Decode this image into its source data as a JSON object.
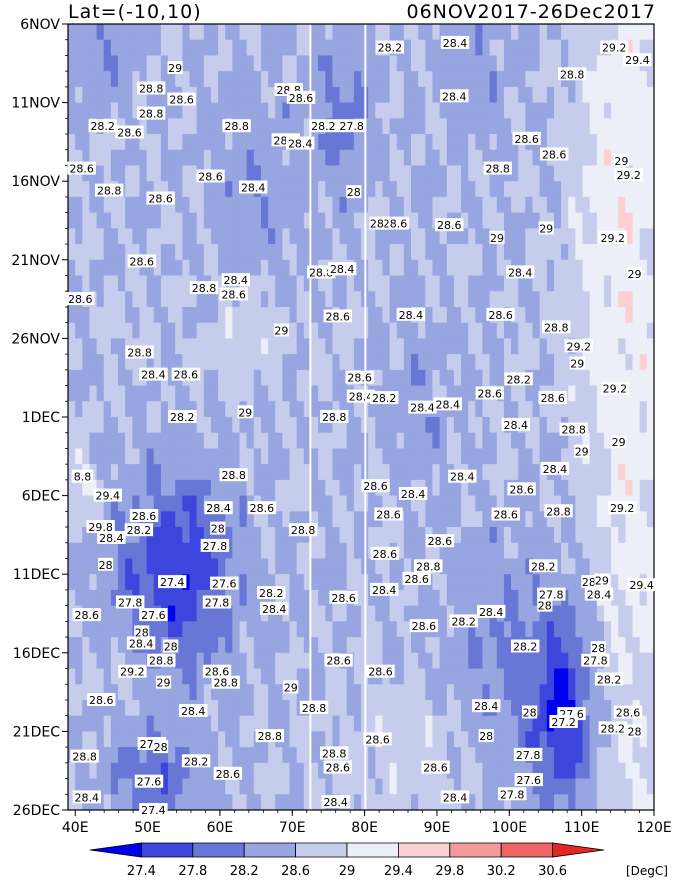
{
  "header": {
    "left": "Lat=(-10,10)",
    "right": "06NOV2017-26Dec2017"
  },
  "chart_data": {
    "type": "heatmap",
    "title": "",
    "xlabel": "",
    "ylabel": "",
    "x_ticks": [
      "40E",
      "50E",
      "60E",
      "70E",
      "80E",
      "90E",
      "100E",
      "110E",
      "120E"
    ],
    "x_tick_values": [
      40,
      50,
      60,
      70,
      80,
      90,
      100,
      110,
      120
    ],
    "xlim": [
      39,
      120
    ],
    "y_ticks": [
      "6NOV",
      "11NOV",
      "16NOV",
      "21NOV",
      "26NOV",
      "1DEC",
      "6DEC",
      "11DEC",
      "16DEC",
      "21DEC",
      "26DEC"
    ],
    "y_tick_days": [
      0,
      5,
      10,
      15,
      20,
      25,
      30,
      35,
      40,
      45,
      50
    ],
    "levels": [
      27.4,
      27.8,
      28.2,
      28.6,
      29,
      29.4,
      29.8,
      30.2,
      30.6
    ],
    "colorbar_labels": [
      "27.4",
      "27.8",
      "28.2",
      "28.6",
      "29",
      "29.4",
      "29.8",
      "30.2",
      "30.6"
    ],
    "colors": [
      "#0000ee",
      "#3c46dc",
      "#6877d6",
      "#97a5e0",
      "#c6cdec",
      "#eceef8",
      "#fbd0d0",
      "#f49a9a",
      "#ee6464",
      "#e52626"
    ],
    "units": "[DegC]",
    "contour_labels": [
      {
        "text": "28.2",
        "lon": 83.5,
        "day": 1.5
      },
      {
        "text": "28.4",
        "lon": 92.5,
        "day": 1.2
      },
      {
        "text": "29.2",
        "lon": 114.5,
        "day": 1.5
      },
      {
        "text": "29",
        "lon": 53.8,
        "day": 2.8
      },
      {
        "text": "29.4",
        "lon": 117.7,
        "day": 2.3
      },
      {
        "text": "28.8",
        "lon": 108.7,
        "day": 3.2
      },
      {
        "text": "28.8",
        "lon": 50.5,
        "day": 4.1
      },
      {
        "text": "28.8",
        "lon": 69.5,
        "day": 4.2
      },
      {
        "text": "28.4",
        "lon": 92.4,
        "day": 4.6
      },
      {
        "text": "28.6",
        "lon": 54.7,
        "day": 4.8
      },
      {
        "text": "28.6",
        "lon": 71.2,
        "day": 4.7
      },
      {
        "text": "28.8",
        "lon": 50.5,
        "day": 5.7
      },
      {
        "text": "28.2",
        "lon": 43.8,
        "day": 6.5
      },
      {
        "text": "28.2",
        "lon": 74.3,
        "day": 6.5
      },
      {
        "text": "27.8",
        "lon": 78.2,
        "day": 6.5
      },
      {
        "text": "28.6",
        "lon": 47.5,
        "day": 6.9
      },
      {
        "text": "28.8",
        "lon": 62.3,
        "day": 6.5
      },
      {
        "text": "28.6",
        "lon": 69.1,
        "day": 7.4
      },
      {
        "text": "28.4",
        "lon": 71.1,
        "day": 7.6
      },
      {
        "text": "28.6",
        "lon": 102.4,
        "day": 7.3
      },
      {
        "text": "28.6",
        "lon": 106.2,
        "day": 8.3
      },
      {
        "text": "28.6",
        "lon": 40.9,
        "day": 9.2
      },
      {
        "text": "28.8",
        "lon": 98.4,
        "day": 9.2
      },
      {
        "text": "29",
        "lon": 115.5,
        "day": 8.7
      },
      {
        "text": "29.2",
        "lon": 116.5,
        "day": 9.6
      },
      {
        "text": "28.6",
        "lon": 58.7,
        "day": 9.7
      },
      {
        "text": "28.4",
        "lon": 64.6,
        "day": 10.4
      },
      {
        "text": "28.8",
        "lon": 44.7,
        "day": 10.6
      },
      {
        "text": "28.6",
        "lon": 51.8,
        "day": 11.1
      },
      {
        "text": "28",
        "lon": 78.5,
        "day": 10.7
      },
      {
        "text": "28.6",
        "lon": 84.2,
        "day": 12.7
      },
      {
        "text": "28",
        "lon": 81.7,
        "day": 12.7
      },
      {
        "text": "28.6",
        "lon": 91.7,
        "day": 12.8
      },
      {
        "text": "29",
        "lon": 98.3,
        "day": 13.6
      },
      {
        "text": "29",
        "lon": 105.1,
        "day": 13.0
      },
      {
        "text": "29.2",
        "lon": 114.3,
        "day": 13.6
      },
      {
        "text": "28.6",
        "lon": 49.2,
        "day": 15.1
      },
      {
        "text": "28.4",
        "lon": 62.2,
        "day": 16.3
      },
      {
        "text": "28.8",
        "lon": 74.0,
        "day": 15.8
      },
      {
        "text": "28.4",
        "lon": 76.9,
        "day": 15.6
      },
      {
        "text": "28.4",
        "lon": 101.5,
        "day": 15.8
      },
      {
        "text": "29",
        "lon": 117.3,
        "day": 15.9
      },
      {
        "text": "28.8",
        "lon": 57.8,
        "day": 16.8
      },
      {
        "text": "28.6",
        "lon": 61.9,
        "day": 17.2
      },
      {
        "text": "28.6",
        "lon": 40.7,
        "day": 17.5
      },
      {
        "text": "28.6",
        "lon": 76.3,
        "day": 18.6
      },
      {
        "text": "28.4",
        "lon": 86.4,
        "day": 18.5
      },
      {
        "text": "28.6",
        "lon": 98.8,
        "day": 18.5
      },
      {
        "text": "28.8",
        "lon": 106.5,
        "day": 19.3
      },
      {
        "text": "29",
        "lon": 68.5,
        "day": 19.5
      },
      {
        "text": "29.2",
        "lon": 109.6,
        "day": 20.5
      },
      {
        "text": "28.8",
        "lon": 48.9,
        "day": 20.9
      },
      {
        "text": "29",
        "lon": 109.4,
        "day": 21.6
      },
      {
        "text": "28.4",
        "lon": 50.8,
        "day": 22.3
      },
      {
        "text": "28.6",
        "lon": 55.3,
        "day": 22.3
      },
      {
        "text": "28.6",
        "lon": 79.3,
        "day": 22.5
      },
      {
        "text": "28.2",
        "lon": 101.3,
        "day": 22.6
      },
      {
        "text": "29.2",
        "lon": 114.6,
        "day": 23.2
      },
      {
        "text": "28.6",
        "lon": 97.3,
        "day": 23.5
      },
      {
        "text": "28.6",
        "lon": 106.0,
        "day": 23.8
      },
      {
        "text": "28.4",
        "lon": 79.5,
        "day": 23.7
      },
      {
        "text": "28.2",
        "lon": 82.7,
        "day": 23.8
      },
      {
        "text": "28.4",
        "lon": 88.0,
        "day": 24.4
      },
      {
        "text": "28.4",
        "lon": 91.5,
        "day": 24.2
      },
      {
        "text": "29",
        "lon": 63.5,
        "day": 24.7
      },
      {
        "text": "28.8",
        "lon": 75.8,
        "day": 25.0
      },
      {
        "text": "28.2",
        "lon": 54.8,
        "day": 25.0
      },
      {
        "text": "28.4",
        "lon": 100.9,
        "day": 25.5
      },
      {
        "text": "28.8",
        "lon": 108.9,
        "day": 25.8
      },
      {
        "text": "29",
        "lon": 115.1,
        "day": 26.6
      },
      {
        "text": "29",
        "lon": 110.0,
        "day": 27.2
      },
      {
        "text": "28.4",
        "lon": 106.3,
        "day": 28.3
      },
      {
        "text": "28.8",
        "lon": 61.9,
        "day": 28.7
      },
      {
        "text": "28.6",
        "lon": 81.5,
        "day": 29.4
      },
      {
        "text": "28.4",
        "lon": 93.5,
        "day": 28.8
      },
      {
        "text": "28.4",
        "lon": 86.7,
        "day": 29.9
      },
      {
        "text": "8.8",
        "lon": 41.0,
        "day": 28.8
      },
      {
        "text": "29.4",
        "lon": 44.5,
        "day": 30.0
      },
      {
        "text": "28.6",
        "lon": 101.7,
        "day": 29.6
      },
      {
        "text": "28.4",
        "lon": 59.8,
        "day": 30.8
      },
      {
        "text": "28.6",
        "lon": 65.8,
        "day": 30.8
      },
      {
        "text": "28.6",
        "lon": 83.3,
        "day": 31.2
      },
      {
        "text": "28.6",
        "lon": 99.5,
        "day": 31.2
      },
      {
        "text": "28.8",
        "lon": 106.8,
        "day": 31.0
      },
      {
        "text": "29.2",
        "lon": 115.6,
        "day": 30.8
      },
      {
        "text": "28.6",
        "lon": 49.5,
        "day": 31.3
      },
      {
        "text": "29.8",
        "lon": 43.5,
        "day": 32.0
      },
      {
        "text": "28.4",
        "lon": 45.0,
        "day": 32.7
      },
      {
        "text": "28.2",
        "lon": 48.8,
        "day": 32.2
      },
      {
        "text": "28",
        "lon": 59.7,
        "day": 32.1
      },
      {
        "text": "28.8",
        "lon": 71.5,
        "day": 32.2
      },
      {
        "text": "28.6",
        "lon": 90.4,
        "day": 32.9
      },
      {
        "text": "27.8",
        "lon": 59.3,
        "day": 33.2
      },
      {
        "text": "28",
        "lon": 44.2,
        "day": 34.4
      },
      {
        "text": "28.6",
        "lon": 82.8,
        "day": 33.7
      },
      {
        "text": "28.8",
        "lon": 88.8,
        "day": 34.5
      },
      {
        "text": "28.2",
        "lon": 104.7,
        "day": 34.5
      },
      {
        "text": "27.4",
        "lon": 53.4,
        "day": 35.5
      },
      {
        "text": "27.6",
        "lon": 60.6,
        "day": 35.6
      },
      {
        "text": "28.6",
        "lon": 87.2,
        "day": 35.3
      },
      {
        "text": "28",
        "lon": 111.0,
        "day": 35.5
      },
      {
        "text": "29",
        "lon": 112.8,
        "day": 35.4
      },
      {
        "text": "29.4",
        "lon": 118.3,
        "day": 35.7
      },
      {
        "text": "28.2",
        "lon": 67.1,
        "day": 36.2
      },
      {
        "text": "28.4",
        "lon": 82.7,
        "day": 36.0
      },
      {
        "text": "28.6",
        "lon": 77.1,
        "day": 36.5
      },
      {
        "text": "27.8",
        "lon": 105.8,
        "day": 36.3
      },
      {
        "text": "28.4",
        "lon": 112.4,
        "day": 36.3
      },
      {
        "text": "27.8",
        "lon": 47.6,
        "day": 36.8
      },
      {
        "text": "27.8",
        "lon": 59.6,
        "day": 36.8
      },
      {
        "text": "28",
        "lon": 104.9,
        "day": 37.0
      },
      {
        "text": "28.4",
        "lon": 67.5,
        "day": 37.2
      },
      {
        "text": "28.6",
        "lon": 41.6,
        "day": 37.6
      },
      {
        "text": "27.6",
        "lon": 50.8,
        "day": 37.6
      },
      {
        "text": "28.4",
        "lon": 97.5,
        "day": 37.4
      },
      {
        "text": "28.2",
        "lon": 93.7,
        "day": 38.0
      },
      {
        "text": "28.6",
        "lon": 88.2,
        "day": 38.3
      },
      {
        "text": "28",
        "lon": 49.2,
        "day": 38.7
      },
      {
        "text": "28.4",
        "lon": 49.1,
        "day": 39.4
      },
      {
        "text": "28",
        "lon": 53.2,
        "day": 39.6
      },
      {
        "text": "28.2",
        "lon": 102.2,
        "day": 39.6
      },
      {
        "text": "28",
        "lon": 112.3,
        "day": 39.7
      },
      {
        "text": "27.8",
        "lon": 111.9,
        "day": 40.5
      },
      {
        "text": "28.8",
        "lon": 51.9,
        "day": 40.5
      },
      {
        "text": "28.6",
        "lon": 76.4,
        "day": 40.5
      },
      {
        "text": "28.6",
        "lon": 59.6,
        "day": 41.2
      },
      {
        "text": "28.6",
        "lon": 82.2,
        "day": 41.2
      },
      {
        "text": "29.2",
        "lon": 47.9,
        "day": 41.2
      },
      {
        "text": "28.2",
        "lon": 113.8,
        "day": 41.7
      },
      {
        "text": "28.8",
        "lon": 60.8,
        "day": 41.9
      },
      {
        "text": "29",
        "lon": 52.2,
        "day": 41.9
      },
      {
        "text": "29",
        "lon": 69.8,
        "day": 42.2
      },
      {
        "text": "28.6",
        "lon": 43.6,
        "day": 43.0
      },
      {
        "text": "28.4",
        "lon": 96.8,
        "day": 43.4
      },
      {
        "text": "28.8",
        "lon": 73.0,
        "day": 43.5
      },
      {
        "text": "28.4",
        "lon": 56.3,
        "day": 43.7
      },
      {
        "text": "28",
        "lon": 102.8,
        "day": 43.8
      },
      {
        "text": "27.6",
        "lon": 108.6,
        "day": 43.9
      },
      {
        "text": "28.6",
        "lon": 116.4,
        "day": 43.8
      },
      {
        "text": "27.2",
        "lon": 107.5,
        "day": 44.4
      },
      {
        "text": "28.2",
        "lon": 114.3,
        "day": 44.8
      },
      {
        "text": "28",
        "lon": 117.3,
        "day": 45.0
      },
      {
        "text": "28.6",
        "lon": 81.8,
        "day": 45.5
      },
      {
        "text": "28.8",
        "lon": 66.9,
        "day": 45.3
      },
      {
        "text": "27.4",
        "lon": 50.6,
        "day": 45.8
      },
      {
        "text": "28",
        "lon": 51.8,
        "day": 46.0
      },
      {
        "text": "28",
        "lon": 96.8,
        "day": 45.3
      },
      {
        "text": "28.8",
        "lon": 75.8,
        "day": 46.4
      },
      {
        "text": "27.8",
        "lon": 102.6,
        "day": 46.5
      },
      {
        "text": "28.8",
        "lon": 41.3,
        "day": 46.6
      },
      {
        "text": "28.2",
        "lon": 56.7,
        "day": 46.9
      },
      {
        "text": "28.6",
        "lon": 76.3,
        "day": 47.3
      },
      {
        "text": "28.6",
        "lon": 89.8,
        "day": 47.3
      },
      {
        "text": "28.6",
        "lon": 61.1,
        "day": 47.7
      },
      {
        "text": "27.6",
        "lon": 50.2,
        "day": 48.2
      },
      {
        "text": "27.6",
        "lon": 102.7,
        "day": 48.1
      },
      {
        "text": "28.4",
        "lon": 41.6,
        "day": 49.2
      },
      {
        "text": "28.4",
        "lon": 92.5,
        "day": 49.2
      },
      {
        "text": "27.8",
        "lon": 100.4,
        "day": 49.0
      },
      {
        "text": "28.4",
        "lon": 76.0,
        "day": 49.5
      },
      {
        "text": "27.4",
        "lon": 50.8,
        "day": 50.0
      }
    ]
  }
}
